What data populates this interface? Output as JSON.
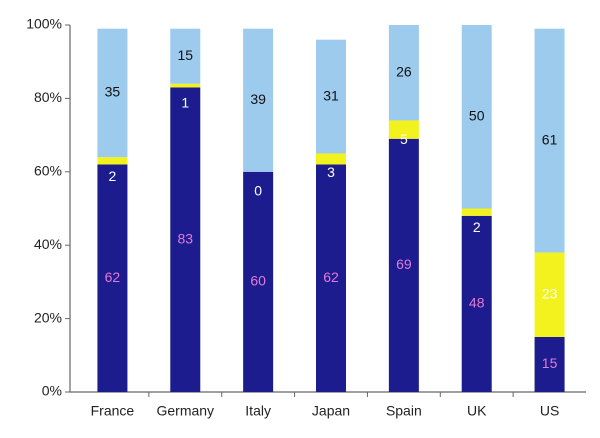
{
  "chart_data": {
    "type": "stacked-bar",
    "categories": [
      "France",
      "Germany",
      "Italy",
      "Japan",
      "Spain",
      "UK",
      "US"
    ],
    "series": [
      {
        "color": "#1c1c8e",
        "label_color": "#e27ad6",
        "values": [
          62,
          83,
          60,
          62,
          69,
          48,
          15
        ]
      },
      {
        "color": "#f2f21e",
        "label_color": "#ffffff",
        "values": [
          2,
          1,
          0,
          3,
          5,
          2,
          23
        ]
      },
      {
        "color": "#9ccbee",
        "label_color": "#111111",
        "values": [
          35,
          15,
          39,
          31,
          26,
          50,
          61
        ]
      }
    ],
    "ylim": [
      0,
      100
    ],
    "yticks": [
      {
        "value": 0,
        "label": "0%"
      },
      {
        "value": 20,
        "label": "20%"
      },
      {
        "value": 40,
        "label": "40%"
      },
      {
        "value": 60,
        "label": "60%"
      },
      {
        "value": 80,
        "label": "80%"
      },
      {
        "value": 100,
        "label": "100%"
      }
    ]
  }
}
